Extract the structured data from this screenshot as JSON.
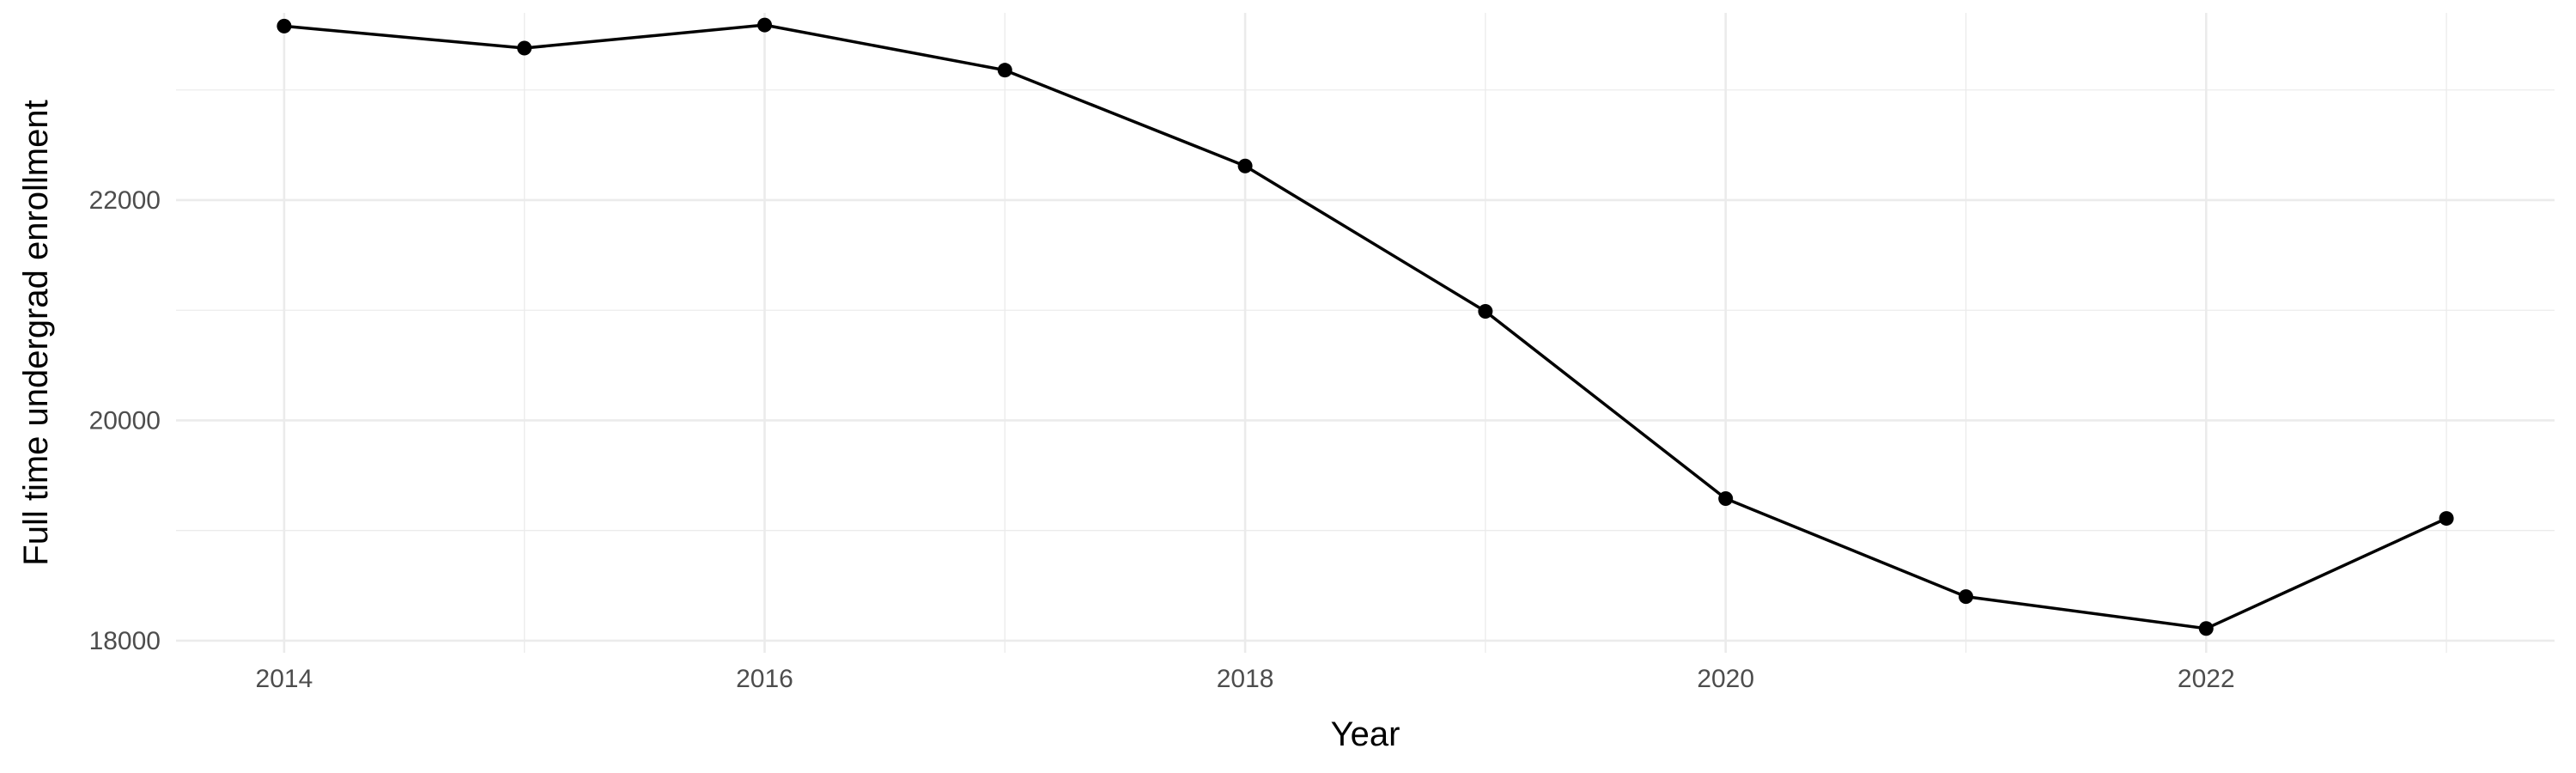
{
  "chart_data": {
    "type": "line",
    "title": "",
    "xlabel": "Year",
    "ylabel": "Full time undergrad enrollment",
    "x": [
      2014,
      2015,
      2016,
      2017,
      2018,
      2019,
      2020,
      2021,
      2022,
      2023
    ],
    "series": [
      {
        "values": [
          23580,
          23380,
          23590,
          23180,
          22310,
          20990,
          19290,
          18400,
          18110,
          19110
        ]
      }
    ],
    "x_ticks": [
      2014,
      2016,
      2018,
      2020,
      2022
    ],
    "x_tick_labels": [
      "2014",
      "2016",
      "2018",
      "2020",
      "2022"
    ],
    "y_ticks": [
      18000,
      20000,
      22000
    ],
    "y_tick_labels": [
      "18000",
      "20000",
      "22000"
    ],
    "xlim": [
      2013.55,
      2023.45
    ],
    "ylim": [
      17890,
      23700
    ],
    "grid": true,
    "line_color": "#000000",
    "point_color": "#000000",
    "grid_color": "#ebebeb"
  }
}
